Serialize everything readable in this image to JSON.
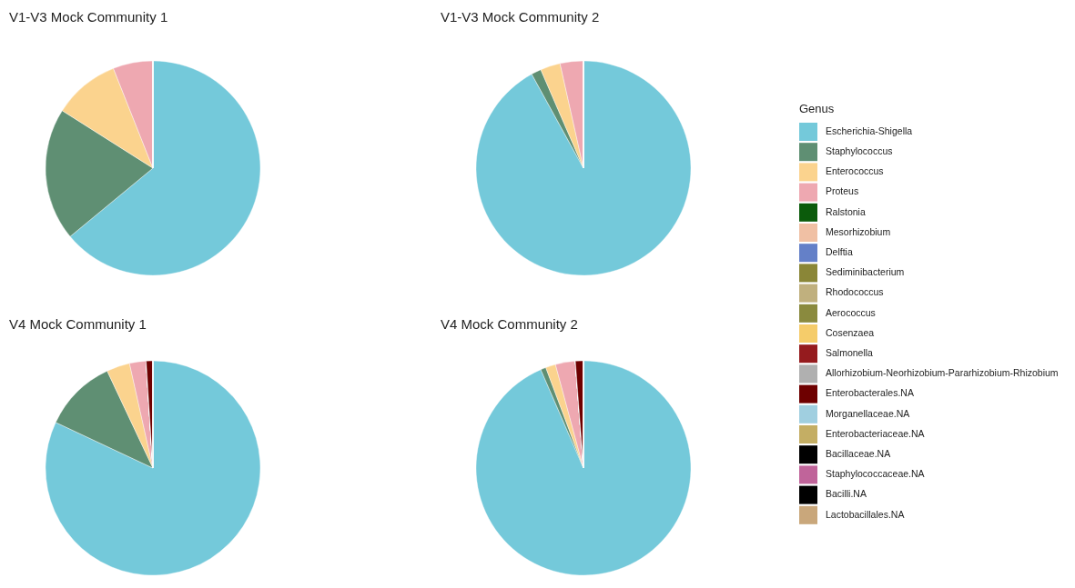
{
  "chart_data": [
    {
      "type": "pie",
      "title": "V1-V3 Mock Community 1",
      "legend": "right",
      "legend_title": "Genus",
      "categories": [
        "Escherichia-Shigella",
        "Staphylococcus",
        "Enterococcus",
        "Proteus",
        "Ralstonia",
        "Mesorhizobium",
        "Delftia",
        "Sediminibacterium",
        "Rhodococcus",
        "Aerococcus",
        "Cosenzaea",
        "Salmonella",
        "Allorhizobium-Neorhizobium-Pararhizobium-Rhizobium",
        "Enterobacterales.NA",
        "Morganellaceae.NA",
        "Enterobacteriaceae.NA",
        "Bacillaceae.NA",
        "Staphylococcaceae.NA",
        "Bacilli.NA",
        "Lactobacillales.NA"
      ],
      "values": [
        64,
        20,
        10,
        6,
        0,
        0,
        0,
        0,
        0,
        0,
        0,
        0,
        0,
        0,
        0,
        0,
        0,
        0,
        0,
        0
      ],
      "colors": [
        "#74c9da",
        "#5f8f73",
        "#fbd38e",
        "#eea8b1",
        "#0b5b0b",
        "#f0c0a4",
        "#6480c8",
        "#8a8637",
        "#c0b07e",
        "#8a8a3e",
        "#f5cc6a",
        "#951b1e",
        "#b0b0b0",
        "#6e0000",
        "#a0cfe0",
        "#c4ae64",
        "#000000",
        "#c0649a",
        "#000000",
        "#c9a77b"
      ]
    },
    {
      "type": "pie",
      "title": "V1-V3 Mock Community 2",
      "categories": [
        null,
        null,
        null,
        null,
        null,
        null,
        null,
        null,
        null,
        null,
        null,
        null,
        null,
        null,
        null,
        null,
        null,
        null,
        null,
        null
      ],
      "values": [
        92,
        1.5,
        3,
        3.5,
        0,
        0,
        0,
        0,
        0,
        0,
        0,
        0,
        0,
        0,
        0,
        0,
        0,
        0,
        0,
        0
      ],
      "colors": [
        "#74c9da",
        "#5f8f73",
        "#fbd38e",
        "#eea8b1",
        "#0b5b0b",
        "#f0c0a4",
        "#6480c8",
        "#8a8637",
        "#c0b07e",
        "#8a8a3e",
        "#f5cc6a",
        "#951b1e",
        "#b0b0b0",
        "#6e0000",
        "#a0cfe0",
        "#c4ae64",
        "#000000",
        "#c0649a",
        "#000000",
        "#c9a77b"
      ]
    },
    {
      "type": "pie",
      "title": "V4 Mock Community 1",
      "categories": [
        null,
        null,
        null,
        null,
        null,
        null,
        null,
        null,
        null,
        null,
        null,
        null,
        null,
        null,
        null,
        null,
        null,
        null,
        null,
        null
      ],
      "values": [
        82,
        11,
        3.5,
        2.5,
        0,
        0,
        0,
        0,
        0,
        0,
        0,
        0,
        0,
        1,
        0,
        0,
        0,
        0,
        0,
        0
      ],
      "colors": [
        "#74c9da",
        "#5f8f73",
        "#fbd38e",
        "#eea8b1",
        "#0b5b0b",
        "#f0c0a4",
        "#6480c8",
        "#8a8637",
        "#c0b07e",
        "#8a8a3e",
        "#f5cc6a",
        "#951b1e",
        "#b0b0b0",
        "#6e0000",
        "#a0cfe0",
        "#c4ae64",
        "#000000",
        "#c0649a",
        "#000000",
        "#c9a77b"
      ]
    },
    {
      "type": "pie",
      "title": "V4 Mock Community 2",
      "categories": [
        null,
        null,
        null,
        null,
        null,
        null,
        null,
        null,
        null,
        null,
        null,
        null,
        null,
        null,
        null,
        null,
        null,
        null,
        null,
        null
      ],
      "values": [
        93.5,
        0.8,
        1.5,
        3,
        0,
        0,
        0,
        0,
        0,
        0,
        0,
        0,
        0,
        1.2,
        0,
        0,
        0,
        0,
        0,
        0
      ],
      "colors": [
        "#74c9da",
        "#5f8f73",
        "#fbd38e",
        "#eea8b1",
        "#0b5b0b",
        "#f0c0a4",
        "#6480c8",
        "#8a8637",
        "#c0b07e",
        "#8a8a3e",
        "#f5cc6a",
        "#951b1e",
        "#b0b0b0",
        "#6e0000",
        "#a0cfe0",
        "#c4ae64",
        "#000000",
        "#c0649a",
        "#000000",
        "#c9a77b"
      ]
    }
  ]
}
